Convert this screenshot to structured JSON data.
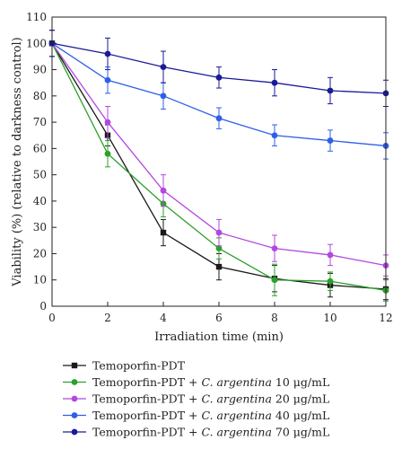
{
  "chart_data": {
    "type": "line",
    "xlabel": "Irradiation time (min)",
    "ylabel": "Viability (%) (relative to darkness control)",
    "xlim": [
      0,
      12
    ],
    "ylim": [
      0,
      110
    ],
    "xticks": [
      0,
      2,
      4,
      6,
      8,
      10,
      12
    ],
    "yticks": [
      0,
      10,
      20,
      30,
      40,
      50,
      60,
      70,
      80,
      90,
      100,
      110
    ],
    "grid": false,
    "legend_position": "bottom",
    "x": [
      0,
      2,
      4,
      6,
      8,
      10,
      12
    ],
    "series": [
      {
        "name": "Temoporfin-PDT",
        "legend_parts": [
          "Temoporfin-PDT",
          "",
          "",
          ""
        ],
        "color": "#1a1a1a",
        "marker": "square",
        "values": [
          100,
          65,
          28,
          15,
          10.5,
          8,
          6.5
        ],
        "errors": [
          5,
          4,
          5,
          5,
          5,
          4.5,
          4
        ]
      },
      {
        "name": "Temoporfin-PDT + C. argentina 10 μg/mL",
        "legend_parts": [
          "Temoporfin-PDT + ",
          "C. argentina",
          " 10 ",
          "μg/mL"
        ],
        "color": "#2ca02c",
        "marker": "circle",
        "values": [
          100,
          58,
          39,
          22,
          10,
          9.5,
          6
        ],
        "errors": [
          5,
          5,
          5,
          4,
          6,
          3.5,
          4
        ]
      },
      {
        "name": "Temoporfin-PDT + C. argentina 20 μg/mL",
        "legend_parts": [
          "Temoporfin-PDT + ",
          "C. argentina",
          " 20 ",
          "μg/mL"
        ],
        "color": "#b347e0",
        "marker": "circle",
        "values": [
          100,
          70,
          44,
          28,
          22,
          19.5,
          15.5
        ],
        "errors": [
          5,
          6,
          6,
          5,
          5,
          4,
          4
        ]
      },
      {
        "name": "Temoporfin-PDT + C. argentina 40 μg/mL",
        "legend_parts": [
          "Temoporfin-PDT + ",
          "C. argentina",
          " 40 ",
          "μg/mL"
        ],
        "color": "#2f5fe8",
        "marker": "circle",
        "values": [
          100,
          86,
          80,
          71.5,
          65,
          63,
          61
        ],
        "errors": [
          5,
          5,
          5,
          4,
          4,
          4,
          5
        ]
      },
      {
        "name": "Temoporfin-PDT + C. argentina 70 μg/mL",
        "legend_parts": [
          "Temoporfin-PDT + ",
          "C. argentina",
          " 70 ",
          "μg/mL"
        ],
        "color": "#1a1a99",
        "marker": "circle",
        "values": [
          100,
          96,
          91,
          87,
          85,
          82,
          81
        ],
        "errors": [
          5,
          6,
          6,
          4,
          5,
          5,
          5
        ]
      }
    ]
  }
}
